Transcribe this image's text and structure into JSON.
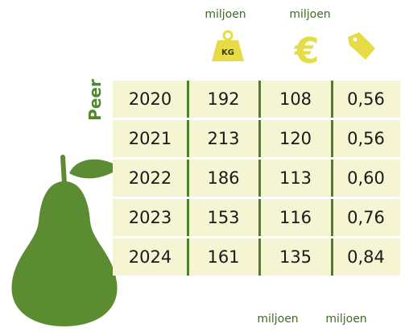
{
  "header": {
    "units": [
      "miljoen",
      "miljoen"
    ]
  },
  "label": "Peer",
  "table": {
    "rows": [
      [
        2020,
        192,
        108,
        "0,56"
      ],
      [
        2021,
        213,
        120,
        "0,56"
      ],
      [
        2022,
        186,
        113,
        "0,60"
      ],
      [
        2023,
        153,
        116,
        "0,76"
      ],
      [
        2024,
        161,
        135,
        "0,84"
      ]
    ]
  },
  "footer": {
    "units": [
      "miljoen",
      "miljoen"
    ]
  }
}
